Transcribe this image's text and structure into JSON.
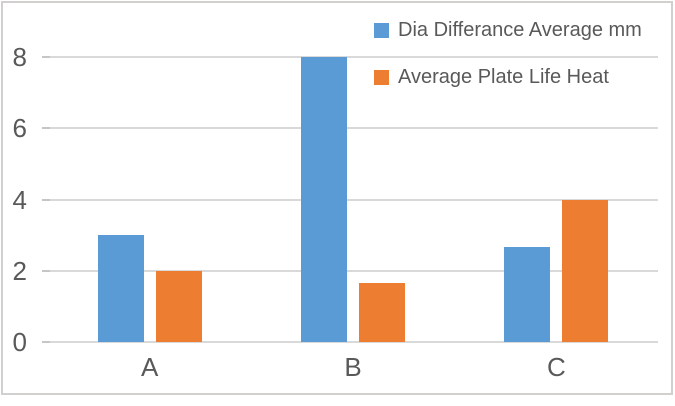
{
  "chart_data": {
    "type": "bar",
    "title": "",
    "xlabel": "",
    "ylabel": "",
    "categories": [
      "A",
      "B",
      "C"
    ],
    "series": [
      {
        "name": "Dia Differance Average mm",
        "color": "#5B9BD5",
        "values": [
          3,
          8,
          2.67
        ]
      },
      {
        "name": "Average Plate Life Heat",
        "color": "#ED7D31",
        "values": [
          2,
          1.67,
          4
        ]
      }
    ],
    "ylim": [
      0,
      8
    ],
    "yticks": [
      0,
      2,
      4,
      6,
      8
    ],
    "ytick_labels": [
      "0",
      "2",
      "4",
      "6",
      "8"
    ],
    "grid": "horizontal-on",
    "legend_position": "top-right"
  },
  "colors": {
    "series1": "#5B9BD5",
    "series2": "#ED7D31",
    "gridline": "#D9D9D9",
    "tick": "#C6C6C6",
    "axis_text": "#595959",
    "chart_border": "#D2CFCF",
    "background": "#FFFFFF"
  }
}
